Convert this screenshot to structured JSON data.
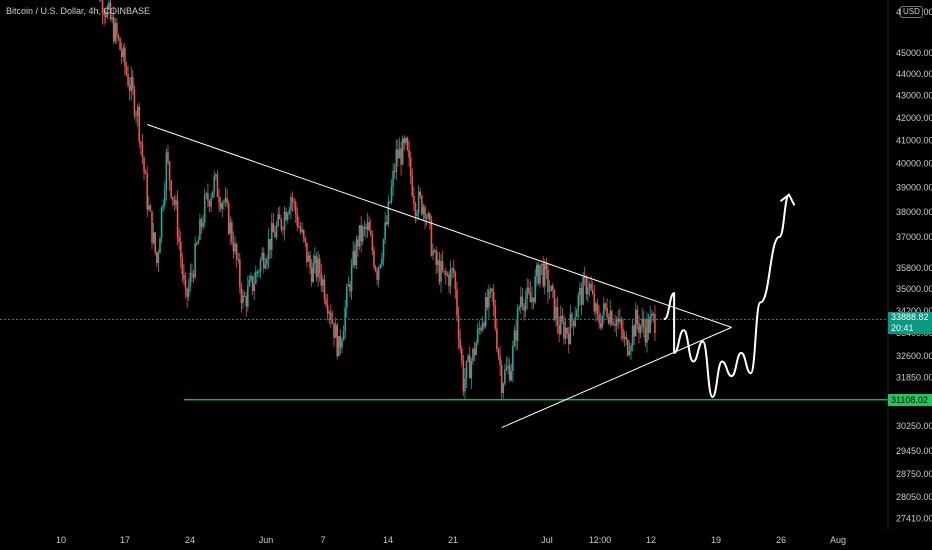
{
  "header": {
    "symbol_title": "Bitcoin / U.S. Dollar, 4h, COINBASE",
    "currency": "USD"
  },
  "price_tag": {
    "price": "33888.82",
    "countdown": "20:41"
  },
  "support_tag": {
    "price": "31108.02"
  },
  "colors": {
    "background": "#000000",
    "up": "#26a69a",
    "down": "#ef5350",
    "support": "#22c55e",
    "trendline": "#ffffff",
    "price_line": "#089981"
  },
  "chart_data": {
    "type": "candlestick",
    "interval": "4h",
    "y_axis": {
      "tick_labels": [
        "47000.00",
        "45000.00",
        "44000.00",
        "43000.00",
        "42000.00",
        "41000.00",
        "40000.00",
        "39000.00",
        "38000.00",
        "37000.00",
        "35800.00",
        "35000.00",
        "34200.00",
        "33400.00",
        "32600.00",
        "31850.00",
        "31100.00",
        "30250.00",
        "29450.00",
        "28750.00",
        "28050.00",
        "27410.00"
      ],
      "ylim": [
        27000,
        47500
      ],
      "scale": "log"
    },
    "x_axis": {
      "tick_labels": [
        "10",
        "17",
        "24",
        "Jun",
        "7",
        "14",
        "21",
        "Jul",
        "12:00",
        "12",
        "19",
        "26",
        "Aug"
      ]
    },
    "close_series": [
      [
        "May 13",
        49500
      ],
      [
        "May 14",
        48000
      ],
      [
        "May 15",
        46800
      ],
      [
        "May 16",
        45500
      ],
      [
        "May 17",
        43800
      ],
      [
        "May 18",
        42200
      ],
      [
        "May 19",
        38500
      ],
      [
        "May 20",
        36000
      ],
      [
        "May 21",
        40200
      ],
      [
        "May 22",
        38000
      ],
      [
        "May 23",
        34500
      ],
      [
        "May 24",
        36200
      ],
      [
        "May 25",
        38200
      ],
      [
        "May 26",
        39200
      ],
      [
        "May 27",
        38400
      ],
      [
        "May 28",
        36800
      ],
      [
        "May 29",
        34500
      ],
      [
        "May 30",
        35200
      ],
      [
        "May 31",
        36200
      ],
      [
        "Jun 1",
        37000
      ],
      [
        "Jun 2",
        37600
      ],
      [
        "Jun 3",
        38700
      ],
      [
        "Jun 4",
        37200
      ],
      [
        "Jun 5",
        35800
      ],
      [
        "Jun 6",
        35700
      ],
      [
        "Jun 7",
        34400
      ],
      [
        "Jun 8",
        32800
      ],
      [
        "Jun 9",
        35000
      ],
      [
        "Jun 10",
        36900
      ],
      [
        "Jun 11",
        37300
      ],
      [
        "Jun 12",
        35700
      ],
      [
        "Jun 13",
        37500
      ],
      [
        "Jun 14",
        40300
      ],
      [
        "Jun 15",
        40600
      ],
      [
        "Jun 16",
        38400
      ],
      [
        "Jun 17",
        38300
      ],
      [
        "Jun 18",
        36000
      ],
      [
        "Jun 19",
        35400
      ],
      [
        "Jun 20",
        35600
      ],
      [
        "Jun 21",
        31700
      ],
      [
        "Jun 22",
        32600
      ],
      [
        "Jun 23",
        34000
      ],
      [
        "Jun 24",
        34700
      ],
      [
        "Jun 25",
        31800
      ],
      [
        "Jun 26",
        32300
      ],
      [
        "Jun 27",
        34800
      ],
      [
        "Jun 28",
        34500
      ],
      [
        "Jun 29",
        35900
      ],
      [
        "Jun 30",
        35000
      ],
      [
        "Jul 1",
        33600
      ],
      [
        "Jul 2",
        33500
      ],
      [
        "Jul 3",
        34600
      ],
      [
        "Jul 4",
        35300
      ],
      [
        "Jul 5",
        33800
      ],
      [
        "Jul 6",
        34300
      ],
      [
        "Jul 7",
        33900
      ],
      [
        "Jul 8",
        32900
      ],
      [
        "Jul 9",
        33800
      ],
      [
        "Jul 10",
        33550
      ],
      [
        "Jul 11",
        33888.82
      ]
    ],
    "levels": [
      {
        "type": "horizontal",
        "price": 31108.02
      }
    ],
    "trendlines": [
      {
        "from": [
          "May 19",
          41700
        ],
        "to": [
          "Jul 19",
          33600
        ]
      },
      {
        "from": [
          "Jun 25",
          30200
        ],
        "to": [
          "Jul 19",
          33600
        ]
      }
    ],
    "projection": [
      [
        "Jul 12",
        33900
      ],
      [
        "Jul 13",
        34850
      ],
      [
        "Jul 13",
        32700
      ],
      [
        "Jul 14",
        33500
      ],
      [
        "Jul 15",
        32400
      ],
      [
        "Jul 16",
        33100
      ],
      [
        "Jul 17",
        31200
      ],
      [
        "Jul 18",
        32400
      ],
      [
        "Jul 19",
        31900
      ],
      [
        "Jul 20",
        32700
      ],
      [
        "Jul 21",
        32000
      ],
      [
        "Jul 22",
        34500
      ],
      [
        "Jul 24",
        37000
      ],
      [
        "Jul 25",
        38700
      ]
    ]
  }
}
